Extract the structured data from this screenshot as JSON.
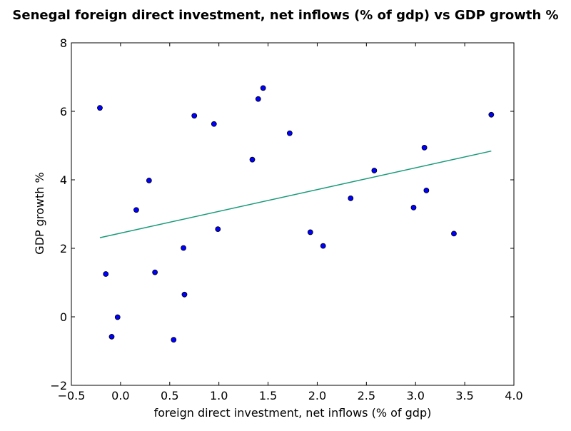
{
  "chart_data": {
    "type": "scatter",
    "title": "Senegal foreign direct investment, net inflows (% of gdp) vs GDP growth %",
    "xlabel": "foreign direct investment, net inflows (% of gdp)",
    "ylabel": "GDP growth %",
    "xlim": [
      -0.5,
      4.0
    ],
    "ylim": [
      -2,
      8
    ],
    "xticks": [
      -0.5,
      0.0,
      0.5,
      1.0,
      1.5,
      2.0,
      2.5,
      3.0,
      3.5,
      4.0
    ],
    "xtick_labels": [
      "−0.5",
      "0.0",
      "0.5",
      "1.0",
      "1.5",
      "2.0",
      "2.5",
      "3.0",
      "3.5",
      "4.0"
    ],
    "yticks": [
      -2,
      0,
      2,
      4,
      6,
      8
    ],
    "ytick_labels": [
      "−2",
      "0",
      "2",
      "4",
      "6",
      "8"
    ],
    "grid": false,
    "point_color": "#0000ff",
    "trend_color": "#1a9a7a",
    "series": [
      {
        "x": [
          -0.21,
          -0.15,
          -0.09,
          -0.03,
          0.16,
          0.29,
          0.35,
          0.54,
          0.64,
          0.65,
          0.75,
          0.95,
          0.99,
          1.34,
          1.4,
          1.45,
          1.72,
          1.93,
          2.06,
          2.34,
          2.58,
          2.98,
          3.09,
          3.11,
          3.39,
          3.77
        ],
        "y": [
          6.1,
          1.25,
          -0.58,
          -0.01,
          3.12,
          3.98,
          1.3,
          -0.67,
          2.01,
          0.65,
          5.87,
          5.63,
          2.56,
          4.59,
          6.36,
          6.68,
          5.36,
          2.47,
          2.07,
          3.46,
          4.27,
          3.19,
          4.94,
          3.69,
          2.43,
          5.9
        ]
      }
    ],
    "trendline": {
      "x": [
        -0.21,
        3.77
      ],
      "y": [
        2.31,
        4.84
      ]
    }
  }
}
